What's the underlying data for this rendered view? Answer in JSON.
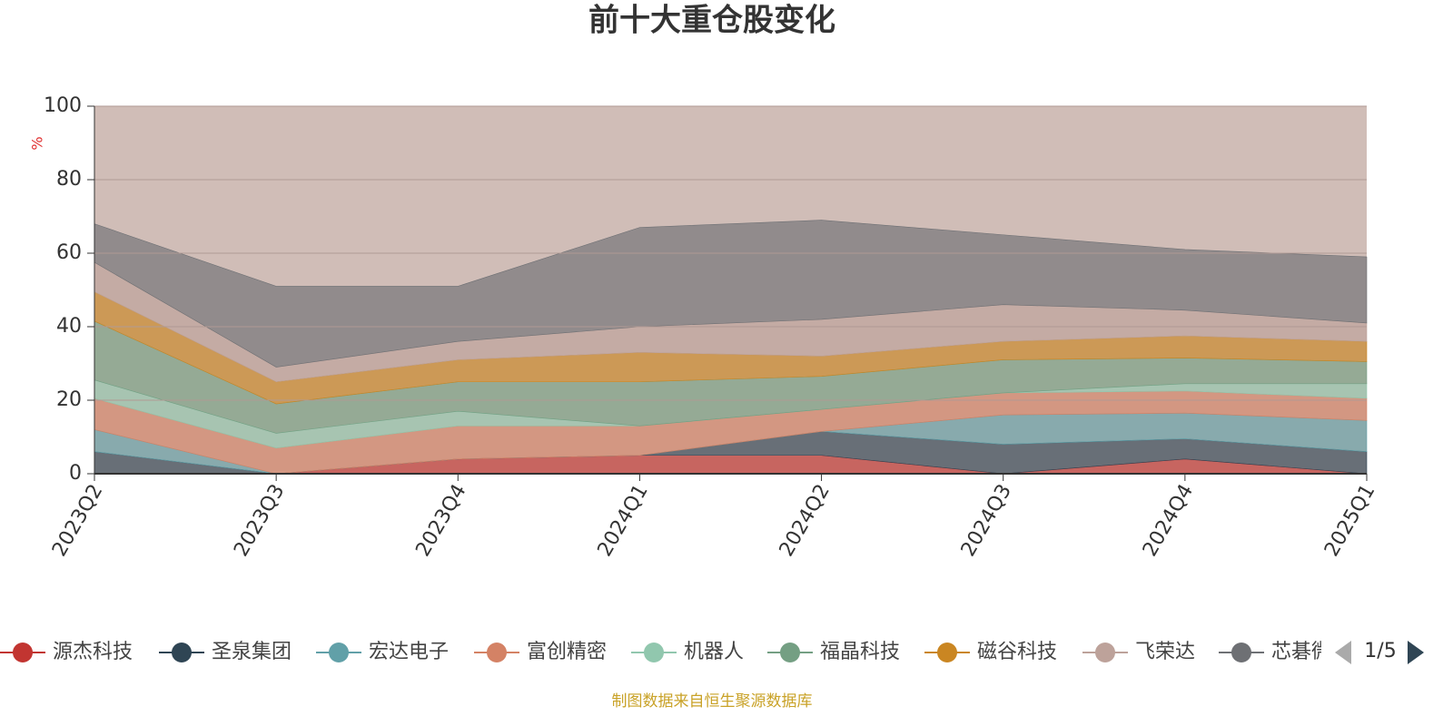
{
  "chart_data": {
    "type": "stacked_area",
    "title": "前十大重仓股变化",
    "y_label": "%",
    "categories": [
      "2023Q2",
      "2023Q3",
      "2023Q4",
      "2024Q1",
      "2024Q2",
      "2024Q3",
      "2024Q4",
      "2025Q1"
    ],
    "ylim": [
      0,
      100
    ],
    "yticks": [
      0,
      20,
      40,
      60,
      80,
      100
    ],
    "grid": true,
    "series": [
      {
        "name": "源杰科技",
        "color": "#c23531",
        "values": [
          0,
          0,
          4,
          5,
          5,
          0,
          4,
          0
        ]
      },
      {
        "name": "圣泉集团",
        "color": "#2f4554",
        "values": [
          6,
          0,
          0,
          0,
          6.5,
          8,
          5.5,
          6
        ]
      },
      {
        "name": "宏达电子",
        "color": "#61a0a8",
        "values": [
          6,
          0,
          0,
          0,
          0,
          8,
          7,
          8.5
        ]
      },
      {
        "name": "富创精密",
        "color": "#d48265",
        "values": [
          8.5,
          7,
          9,
          8,
          6,
          6,
          6,
          6
        ]
      },
      {
        "name": "机器人",
        "color": "#91c7ae",
        "values": [
          5,
          4,
          4,
          0,
          0,
          0,
          2,
          4
        ]
      },
      {
        "name": "福晶科技",
        "color": "#749f83",
        "values": [
          16,
          8,
          8,
          12,
          9,
          9,
          7,
          6
        ]
      },
      {
        "name": "磁谷科技",
        "color": "#ca8622",
        "values": [
          8,
          6,
          6,
          8,
          5.5,
          5,
          6,
          5.5
        ]
      },
      {
        "name": "飞荣达",
        "color": "#bda29a",
        "values": [
          8,
          4,
          5,
          7,
          10,
          10,
          7,
          5
        ]
      },
      {
        "name": "芯碁微装",
        "color": "#6e7074",
        "values": [
          10.5,
          22,
          15,
          27,
          27,
          19,
          16.5,
          18
        ]
      }
    ],
    "legend_page": "1/5",
    "source": "制图数据来自恒生聚源数据库"
  }
}
